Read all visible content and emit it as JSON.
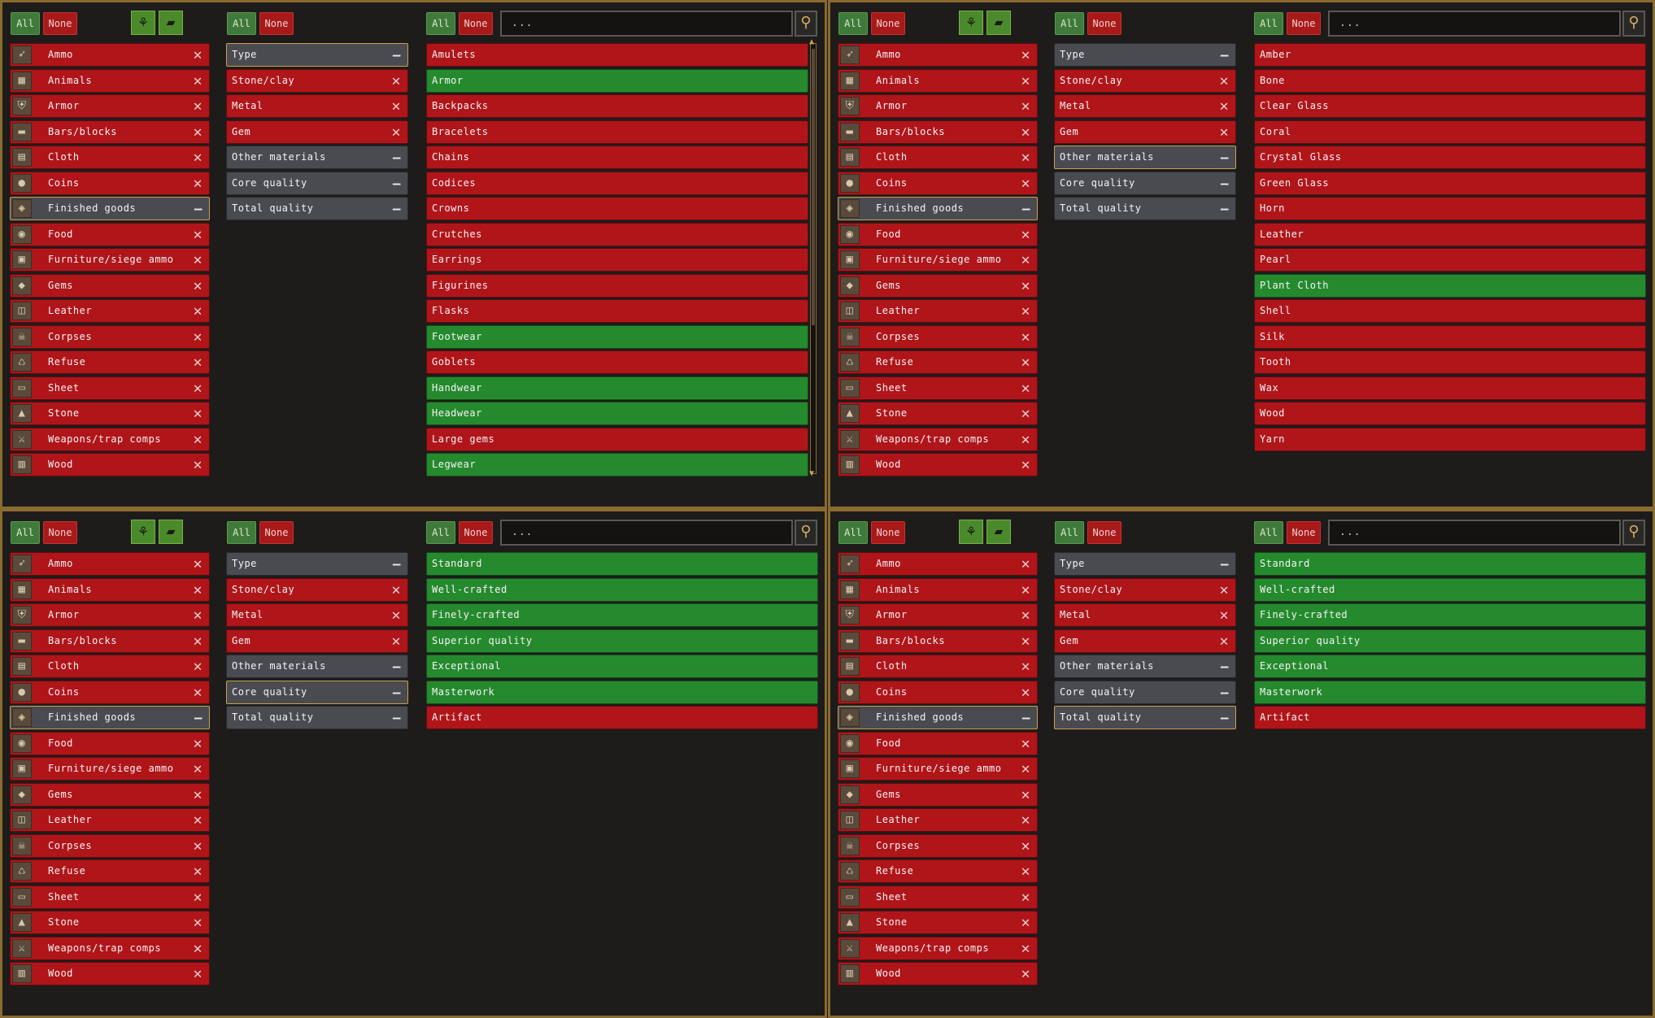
{
  "header": {
    "all_label": "All",
    "none_label": "None",
    "search_placeholder": "...",
    "icon_buttons": [
      "plant-icon",
      "bar-icon"
    ]
  },
  "categories": [
    {
      "label": "Ammo",
      "icon": "ammo-icon",
      "glyph": "➶",
      "state": "off",
      "mark": "✕"
    },
    {
      "label": "Animals",
      "icon": "animals-icon",
      "glyph": "▦",
      "state": "off",
      "mark": "✕"
    },
    {
      "label": "Armor",
      "icon": "armor-icon",
      "glyph": "⛨",
      "state": "off",
      "mark": "✕"
    },
    {
      "label": "Bars/blocks",
      "icon": "bars-icon",
      "glyph": "▬",
      "state": "off",
      "mark": "✕"
    },
    {
      "label": "Cloth",
      "icon": "cloth-icon",
      "glyph": "▤",
      "state": "off",
      "mark": "✕"
    },
    {
      "label": "Coins",
      "icon": "coins-icon",
      "glyph": "●",
      "state": "off",
      "mark": "✕"
    },
    {
      "label": "Finished goods",
      "icon": "finished-goods-icon",
      "glyph": "◈",
      "state": "selected",
      "mark": "—"
    },
    {
      "label": "Food",
      "icon": "food-icon",
      "glyph": "◉",
      "state": "off",
      "mark": "✕"
    },
    {
      "label": "Furniture/siege ammo",
      "icon": "furniture-icon",
      "glyph": "▣",
      "state": "off",
      "mark": "✕"
    },
    {
      "label": "Gems",
      "icon": "gems-icon",
      "glyph": "◆",
      "state": "off",
      "mark": "✕"
    },
    {
      "label": "Leather",
      "icon": "leather-icon",
      "glyph": "◫",
      "state": "off",
      "mark": "✕"
    },
    {
      "label": "Corpses",
      "icon": "skull-icon",
      "glyph": "☠",
      "state": "off",
      "mark": "✕"
    },
    {
      "label": "Refuse",
      "icon": "trash-icon",
      "glyph": "♺",
      "state": "off",
      "mark": "✕"
    },
    {
      "label": "Sheet",
      "icon": "sheet-icon",
      "glyph": "▭",
      "state": "off",
      "mark": "✕"
    },
    {
      "label": "Stone",
      "icon": "stone-icon",
      "glyph": "▲",
      "state": "off",
      "mark": "✕"
    },
    {
      "label": "Weapons/trap comps",
      "icon": "weapons-icon",
      "glyph": "⚔",
      "state": "off",
      "mark": "✕"
    },
    {
      "label": "Wood",
      "icon": "wood-icon",
      "glyph": "▥",
      "state": "off",
      "mark": "✕"
    }
  ],
  "panels": [
    {
      "name": "panel-type",
      "filters": [
        {
          "label": "Type",
          "state": "selected",
          "mark": "—"
        },
        {
          "label": "Stone/clay",
          "state": "off",
          "mark": "✕"
        },
        {
          "label": "Metal",
          "state": "off",
          "mark": "✕"
        },
        {
          "label": "Gem",
          "state": "off",
          "mark": "✕"
        },
        {
          "label": "Other materials",
          "state": "partial",
          "mark": "—"
        },
        {
          "label": "Core quality",
          "state": "partial",
          "mark": "—"
        },
        {
          "label": "Total quality",
          "state": "partial",
          "mark": "—"
        }
      ],
      "items": [
        {
          "label": "Amulets",
          "state": "off"
        },
        {
          "label": "Armor",
          "state": "on"
        },
        {
          "label": "Backpacks",
          "state": "off"
        },
        {
          "label": "Bracelets",
          "state": "off"
        },
        {
          "label": "Chains",
          "state": "off"
        },
        {
          "label": "Codices",
          "state": "off"
        },
        {
          "label": "Crowns",
          "state": "off"
        },
        {
          "label": "Crutches",
          "state": "off"
        },
        {
          "label": "Earrings",
          "state": "off"
        },
        {
          "label": "Figurines",
          "state": "off"
        },
        {
          "label": "Flasks",
          "state": "off"
        },
        {
          "label": "Footwear",
          "state": "on"
        },
        {
          "label": "Goblets",
          "state": "off"
        },
        {
          "label": "Handwear",
          "state": "on"
        },
        {
          "label": "Headwear",
          "state": "on"
        },
        {
          "label": "Large gems",
          "state": "off"
        },
        {
          "label": "Legwear",
          "state": "on"
        }
      ],
      "scrollbar": true
    },
    {
      "name": "panel-other-materials",
      "filters": [
        {
          "label": "Type",
          "state": "partial",
          "mark": "—"
        },
        {
          "label": "Stone/clay",
          "state": "off",
          "mark": "✕"
        },
        {
          "label": "Metal",
          "state": "off",
          "mark": "✕"
        },
        {
          "label": "Gem",
          "state": "off",
          "mark": "✕"
        },
        {
          "label": "Other materials",
          "state": "selected",
          "mark": "—"
        },
        {
          "label": "Core quality",
          "state": "partial",
          "mark": "—"
        },
        {
          "label": "Total quality",
          "state": "partial",
          "mark": "—"
        }
      ],
      "items": [
        {
          "label": "Amber",
          "state": "off"
        },
        {
          "label": "Bone",
          "state": "off"
        },
        {
          "label": "Clear Glass",
          "state": "off"
        },
        {
          "label": "Coral",
          "state": "off"
        },
        {
          "label": "Crystal Glass",
          "state": "off"
        },
        {
          "label": "Green Glass",
          "state": "off"
        },
        {
          "label": "Horn",
          "state": "off"
        },
        {
          "label": "Leather",
          "state": "off"
        },
        {
          "label": "Pearl",
          "state": "off"
        },
        {
          "label": "Plant Cloth",
          "state": "on"
        },
        {
          "label": "Shell",
          "state": "off"
        },
        {
          "label": "Silk",
          "state": "off"
        },
        {
          "label": "Tooth",
          "state": "off"
        },
        {
          "label": "Wax",
          "state": "off"
        },
        {
          "label": "Wood",
          "state": "off"
        },
        {
          "label": "Yarn",
          "state": "off"
        }
      ],
      "scrollbar": false
    },
    {
      "name": "panel-core-quality",
      "filters": [
        {
          "label": "Type",
          "state": "partial",
          "mark": "—"
        },
        {
          "label": "Stone/clay",
          "state": "off",
          "mark": "✕"
        },
        {
          "label": "Metal",
          "state": "off",
          "mark": "✕"
        },
        {
          "label": "Gem",
          "state": "off",
          "mark": "✕"
        },
        {
          "label": "Other materials",
          "state": "partial",
          "mark": "—"
        },
        {
          "label": "Core quality",
          "state": "selected",
          "mark": "—"
        },
        {
          "label": "Total quality",
          "state": "partial",
          "mark": "—"
        }
      ],
      "items": [
        {
          "label": "Standard",
          "state": "on"
        },
        {
          "label": "Well-crafted",
          "state": "on"
        },
        {
          "label": "Finely-crafted",
          "state": "on"
        },
        {
          "label": "Superior quality",
          "state": "on"
        },
        {
          "label": "Exceptional",
          "state": "on"
        },
        {
          "label": "Masterwork",
          "state": "on"
        },
        {
          "label": "Artifact",
          "state": "off"
        }
      ],
      "scrollbar": false
    },
    {
      "name": "panel-total-quality",
      "filters": [
        {
          "label": "Type",
          "state": "partial",
          "mark": "—"
        },
        {
          "label": "Stone/clay",
          "state": "off",
          "mark": "✕"
        },
        {
          "label": "Metal",
          "state": "off",
          "mark": "✕"
        },
        {
          "label": "Gem",
          "state": "off",
          "mark": "✕"
        },
        {
          "label": "Other materials",
          "state": "partial",
          "mark": "—"
        },
        {
          "label": "Core quality",
          "state": "partial",
          "mark": "—"
        },
        {
          "label": "Total quality",
          "state": "selected",
          "mark": "—"
        }
      ],
      "items": [
        {
          "label": "Standard",
          "state": "on"
        },
        {
          "label": "Well-crafted",
          "state": "on"
        },
        {
          "label": "Finely-crafted",
          "state": "on"
        },
        {
          "label": "Superior quality",
          "state": "on"
        },
        {
          "label": "Exceptional",
          "state": "on"
        },
        {
          "label": "Masterwork",
          "state": "on"
        },
        {
          "label": "Artifact",
          "state": "off"
        }
      ],
      "scrollbar": false
    }
  ],
  "colors": {
    "on": "#258a2e",
    "off": "#b0151a",
    "partial": "#4a4b50",
    "frame": "#8a6a2e"
  }
}
